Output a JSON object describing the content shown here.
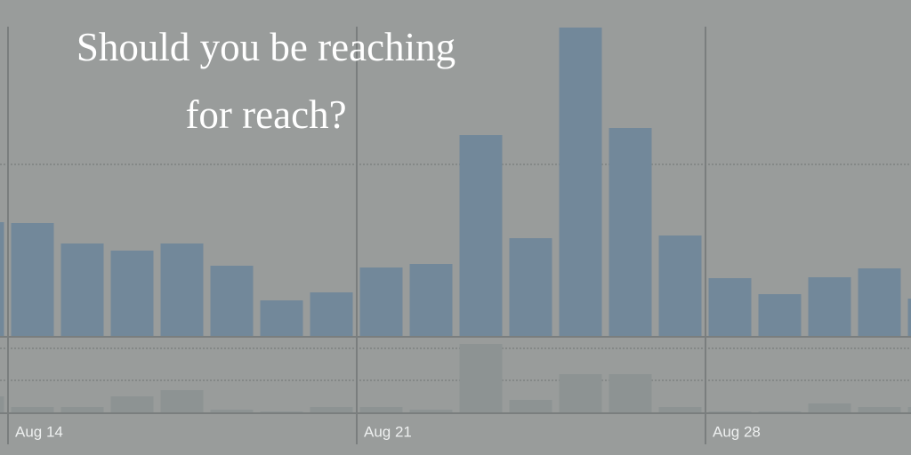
{
  "title": [
    "Should you be reaching",
    "for reach?"
  ],
  "chart_data": [
    {
      "type": "bar",
      "color": "#72889a",
      "categories": [
        null,
        "Aug 14",
        null,
        null,
        null,
        null,
        null,
        null,
        "Aug 21",
        null,
        null,
        null,
        null,
        null,
        null,
        "Aug 28",
        null,
        null,
        null,
        null
      ],
      "values": [
        129,
        128,
        105,
        97,
        105,
        80,
        41,
        50,
        78,
        82,
        227,
        111,
        348,
        235,
        114,
        66,
        48,
        67,
        77,
        43
      ],
      "ylim": [
        0,
        349
      ],
      "yticks": [
        194
      ],
      "grid": true
    },
    {
      "type": "bar",
      "color": "#8d9393",
      "values": [
        19,
        7,
        7,
        19,
        26,
        4,
        2,
        7,
        7,
        4,
        78,
        15,
        44,
        44,
        7,
        2,
        2,
        11,
        7,
        7
      ],
      "ylim": [
        0,
        85
      ],
      "yticks": [
        37,
        73
      ],
      "grid": true
    }
  ]
}
